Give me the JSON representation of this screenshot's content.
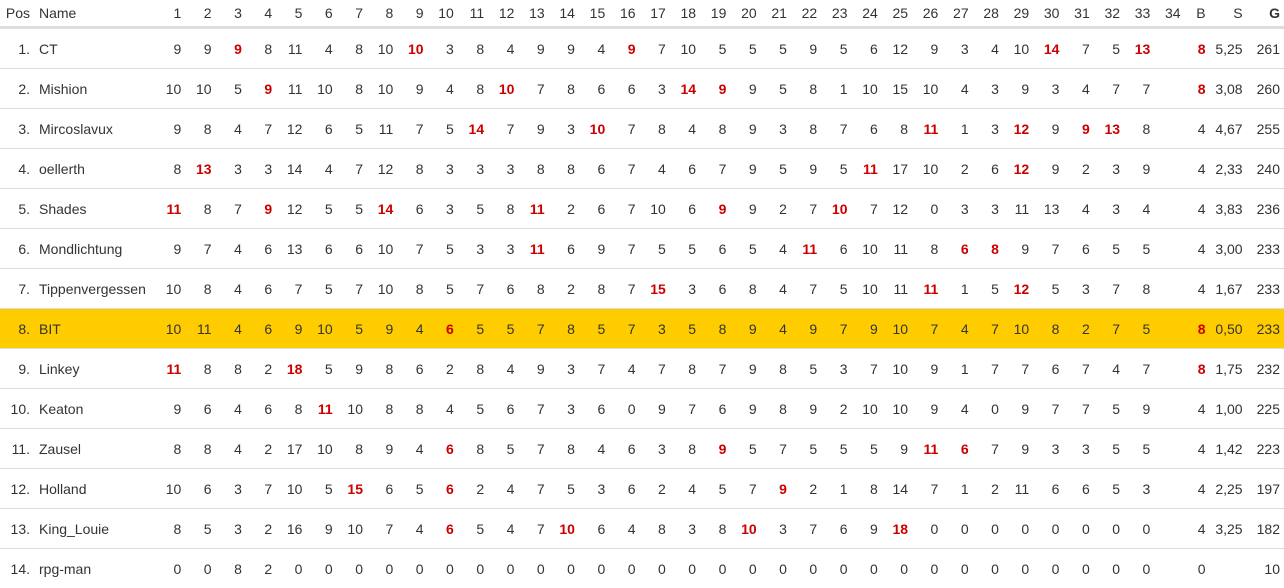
{
  "colors": {
    "text": "#333333",
    "highlight_score": "#cc0000",
    "current_user_row": "#ffcc00",
    "border": "#dddddd"
  },
  "header": {
    "pos": "Pos",
    "name": "Name",
    "matchdays": [
      "1",
      "2",
      "3",
      "4",
      "5",
      "6",
      "7",
      "8",
      "9",
      "10",
      "11",
      "12",
      "13",
      "14",
      "15",
      "16",
      "17",
      "18",
      "19",
      "20",
      "21",
      "22",
      "23",
      "24",
      "25",
      "26",
      "27",
      "28",
      "29",
      "30",
      "31",
      "32",
      "33",
      "34"
    ],
    "b": "B",
    "s": "S",
    "g": "G"
  },
  "rows": [
    {
      "pos": "1.",
      "name": "CT",
      "scores": [
        9,
        9,
        9,
        8,
        11,
        4,
        8,
        10,
        10,
        3,
        8,
        4,
        9,
        9,
        4,
        9,
        7,
        10,
        5,
        5,
        5,
        9,
        5,
        6,
        12,
        9,
        3,
        4,
        10,
        14,
        7,
        5,
        13,
        ""
      ],
      "highlighted_matchdays": [
        3,
        9,
        16,
        30,
        33
      ],
      "b": "8",
      "b_highlight": true,
      "s": "5,25",
      "g": "261"
    },
    {
      "pos": "2.",
      "name": "Mishion",
      "scores": [
        10,
        10,
        5,
        9,
        11,
        10,
        8,
        10,
        9,
        4,
        8,
        10,
        7,
        8,
        6,
        6,
        3,
        14,
        9,
        9,
        5,
        8,
        1,
        10,
        15,
        10,
        4,
        3,
        9,
        3,
        4,
        7,
        7,
        ""
      ],
      "highlighted_matchdays": [
        4,
        12,
        18,
        19
      ],
      "b": "8",
      "b_highlight": true,
      "s": "3,08",
      "g": "260"
    },
    {
      "pos": "3.",
      "name": "Mircoslavux",
      "scores": [
        9,
        8,
        4,
        7,
        12,
        6,
        5,
        11,
        7,
        5,
        14,
        7,
        9,
        3,
        10,
        7,
        8,
        4,
        8,
        9,
        3,
        8,
        7,
        6,
        8,
        11,
        1,
        3,
        12,
        9,
        9,
        13,
        8,
        ""
      ],
      "highlighted_matchdays": [
        11,
        15,
        26,
        29,
        31,
        32
      ],
      "b": "4",
      "b_highlight": false,
      "s": "4,67",
      "g": "255"
    },
    {
      "pos": "4.",
      "name": "oellerth",
      "scores": [
        8,
        13,
        3,
        3,
        14,
        4,
        7,
        12,
        8,
        3,
        3,
        3,
        8,
        8,
        6,
        7,
        4,
        6,
        7,
        9,
        5,
        9,
        5,
        11,
        17,
        10,
        2,
        6,
        12,
        9,
        2,
        3,
        9,
        ""
      ],
      "highlighted_matchdays": [
        2,
        24,
        29
      ],
      "b": "4",
      "b_highlight": false,
      "s": "2,33",
      "g": "240"
    },
    {
      "pos": "5.",
      "name": "Shades",
      "scores": [
        11,
        8,
        7,
        9,
        12,
        5,
        5,
        14,
        6,
        3,
        5,
        8,
        11,
        2,
        6,
        7,
        10,
        6,
        9,
        9,
        2,
        7,
        10,
        7,
        12,
        0,
        3,
        3,
        11,
        13,
        4,
        3,
        4,
        ""
      ],
      "highlighted_matchdays": [
        1,
        4,
        8,
        13,
        19,
        23
      ],
      "b": "4",
      "b_highlight": false,
      "s": "3,83",
      "g": "236"
    },
    {
      "pos": "6.",
      "name": "Mondlichtung",
      "scores": [
        9,
        7,
        4,
        6,
        13,
        6,
        6,
        10,
        7,
        5,
        3,
        3,
        11,
        6,
        9,
        7,
        5,
        5,
        6,
        5,
        4,
        11,
        6,
        10,
        11,
        8,
        6,
        8,
        9,
        7,
        6,
        5,
        5,
        ""
      ],
      "highlighted_matchdays": [
        13,
        22,
        27,
        28
      ],
      "b": "4",
      "b_highlight": false,
      "s": "3,00",
      "g": "233"
    },
    {
      "pos": "7.",
      "name": "Tippenvergessen",
      "scores": [
        10,
        8,
        4,
        6,
        7,
        5,
        7,
        10,
        8,
        5,
        7,
        6,
        8,
        2,
        8,
        7,
        15,
        3,
        6,
        8,
        4,
        7,
        5,
        10,
        11,
        11,
        1,
        5,
        12,
        5,
        3,
        7,
        8,
        ""
      ],
      "highlighted_matchdays": [
        17,
        26,
        29
      ],
      "b": "4",
      "b_highlight": false,
      "s": "1,67",
      "g": "233"
    },
    {
      "pos": "8.",
      "name": "BIT",
      "scores": [
        10,
        11,
        4,
        6,
        9,
        10,
        5,
        9,
        4,
        6,
        5,
        5,
        7,
        8,
        5,
        7,
        3,
        5,
        8,
        9,
        4,
        9,
        7,
        9,
        10,
        7,
        4,
        7,
        10,
        8,
        2,
        7,
        5,
        ""
      ],
      "highlighted_matchdays": [
        10
      ],
      "b": "8",
      "b_highlight": true,
      "s": "0,50",
      "g": "233",
      "current_user": true
    },
    {
      "pos": "9.",
      "name": "Linkey",
      "scores": [
        11,
        8,
        8,
        2,
        18,
        5,
        9,
        8,
        6,
        2,
        8,
        4,
        9,
        3,
        7,
        4,
        7,
        8,
        7,
        9,
        8,
        5,
        3,
        7,
        10,
        9,
        1,
        7,
        7,
        6,
        7,
        4,
        7,
        ""
      ],
      "highlighted_matchdays": [
        1,
        5
      ],
      "b": "8",
      "b_highlight": true,
      "s": "1,75",
      "g": "232"
    },
    {
      "pos": "10.",
      "name": "Keaton",
      "scores": [
        9,
        6,
        4,
        6,
        8,
        11,
        10,
        8,
        8,
        4,
        5,
        6,
        7,
        3,
        6,
        0,
        9,
        7,
        6,
        9,
        8,
        9,
        2,
        10,
        10,
        9,
        4,
        0,
        9,
        7,
        7,
        5,
        9,
        ""
      ],
      "highlighted_matchdays": [
        6
      ],
      "b": "4",
      "b_highlight": false,
      "s": "1,00",
      "g": "225"
    },
    {
      "pos": "11.",
      "name": "Zausel",
      "scores": [
        8,
        8,
        4,
        2,
        17,
        10,
        8,
        9,
        4,
        6,
        8,
        5,
        7,
        8,
        4,
        6,
        3,
        8,
        9,
        5,
        7,
        5,
        5,
        5,
        9,
        11,
        6,
        7,
        9,
        3,
        3,
        5,
        5,
        ""
      ],
      "highlighted_matchdays": [
        10,
        19,
        26,
        27
      ],
      "b": "4",
      "b_highlight": false,
      "s": "1,42",
      "g": "223"
    },
    {
      "pos": "12.",
      "name": "Holland",
      "scores": [
        10,
        6,
        3,
        7,
        10,
        5,
        15,
        6,
        5,
        6,
        2,
        4,
        7,
        5,
        3,
        6,
        2,
        4,
        5,
        7,
        9,
        2,
        1,
        8,
        14,
        7,
        1,
        2,
        11,
        6,
        6,
        5,
        3,
        ""
      ],
      "highlighted_matchdays": [
        7,
        10,
        21
      ],
      "b": "4",
      "b_highlight": false,
      "s": "2,25",
      "g": "197"
    },
    {
      "pos": "13.",
      "name": "King_Louie",
      "scores": [
        8,
        5,
        3,
        2,
        16,
        9,
        10,
        7,
        4,
        6,
        5,
        4,
        7,
        10,
        6,
        4,
        8,
        3,
        8,
        10,
        3,
        7,
        6,
        9,
        18,
        0,
        0,
        0,
        0,
        0,
        0,
        0,
        0,
        ""
      ],
      "highlighted_matchdays": [
        10,
        14,
        20,
        25
      ],
      "b": "4",
      "b_highlight": false,
      "s": "3,25",
      "g": "182"
    },
    {
      "pos": "14.",
      "name": "rpg-man",
      "scores": [
        0,
        0,
        8,
        2,
        0,
        0,
        0,
        0,
        0,
        0,
        0,
        0,
        0,
        0,
        0,
        0,
        0,
        0,
        0,
        0,
        0,
        0,
        0,
        0,
        0,
        0,
        0,
        0,
        0,
        0,
        0,
        0,
        0,
        ""
      ],
      "highlighted_matchdays": [],
      "b": "0",
      "b_highlight": false,
      "s": "",
      "g": "10"
    }
  ]
}
